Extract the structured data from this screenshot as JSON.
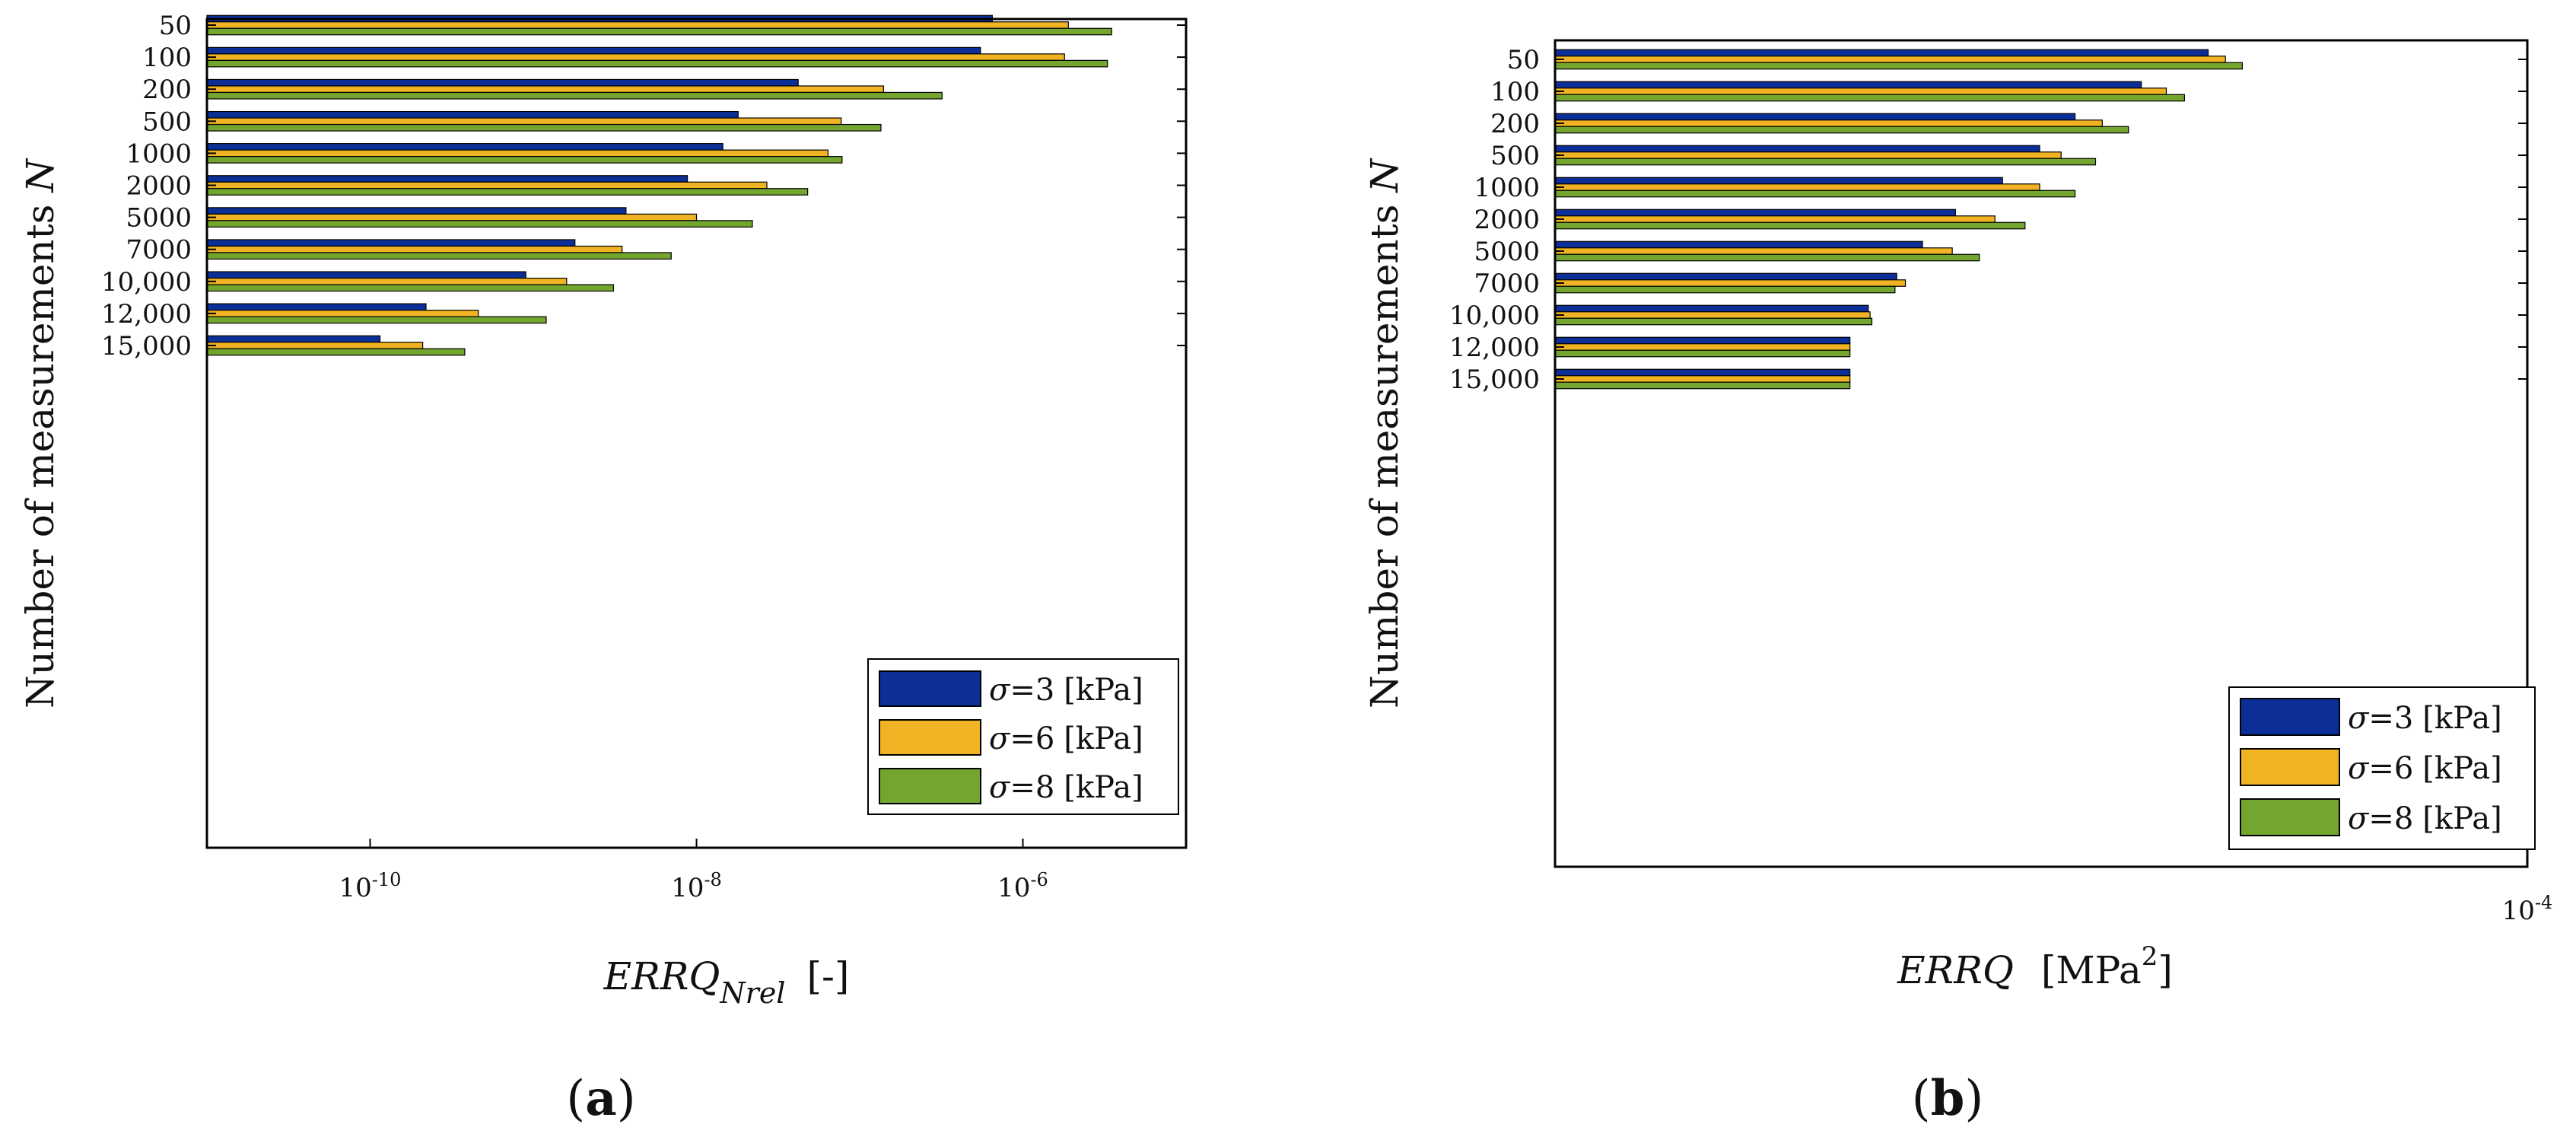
{
  "chart_data": [
    {
      "type": "bar",
      "orientation": "horizontal",
      "x_scale": "log",
      "categories": [
        "50",
        "100",
        "200",
        "500",
        "1000",
        "2000",
        "5000",
        "7000",
        "10,000",
        "12,000",
        "15,000"
      ],
      "series": [
        {
          "name": "σ=3 [kPa]",
          "sigma": "σ",
          "label_value": "=3",
          "unit": "[kPa]",
          "color": "#0b2f96",
          "values": [
            6.5e-07,
            5.5e-07,
            4.2e-08,
            1.8e-08,
            1.45e-08,
            8.8e-09,
            3.7e-09,
            1.8e-09,
            9e-10,
            2.2e-10,
            1.15e-10
          ]
        },
        {
          "name": "σ=6 [kPa]",
          "sigma": "σ",
          "label_value": "=6",
          "unit": "[kPa]",
          "color": "#f0b323",
          "values": [
            1.9e-06,
            1.8e-06,
            1.4e-07,
            7.7e-08,
            6.4e-08,
            2.7e-08,
            1e-08,
            3.5e-09,
            1.6e-09,
            4.6e-10,
            2.1e-10
          ]
        },
        {
          "name": "σ=8 [kPa]",
          "sigma": "σ",
          "label_value": "=8",
          "unit": "[kPa]",
          "color": "#74a62f",
          "values": [
            3.5e-06,
            3.3e-06,
            3.2e-07,
            1.35e-07,
            7.8e-08,
            4.8e-08,
            2.2e-08,
            7e-09,
            3.1e-09,
            1.2e-09,
            3.8e-10
          ]
        }
      ],
      "xlim": [
        1e-11,
        1e-05
      ],
      "xticks": [
        {
          "base": "10",
          "exp": "-10",
          "value": 1e-10
        },
        {
          "base": "10",
          "exp": "-8",
          "value": 1e-08
        },
        {
          "base": "10",
          "exp": "-6",
          "value": 1e-06
        }
      ],
      "xlabel": {
        "main": "ERRQ",
        "sub": "Nrel",
        "unit": "[-]"
      },
      "ylabel": {
        "text": "Number of measurements ",
        "var": "N"
      },
      "legend": "bottom-right",
      "panel_label": {
        "open": "(",
        "letter": "a",
        "close": ")"
      }
    },
    {
      "type": "bar",
      "orientation": "horizontal",
      "x_scale": "log",
      "categories": [
        "50",
        "100",
        "200",
        "500",
        "1000",
        "2000",
        "5000",
        "7000",
        "10,000",
        "12,000",
        "15,000"
      ],
      "series": [
        {
          "name": "σ=3 [kPa]",
          "sigma": "σ",
          "label_value": "=3",
          "unit": "[kPa]",
          "color": "#0b2f96",
          "values": [
            6.6e-05,
            6.05e-05,
            5.55e-05,
            5.3e-05,
            5.05e-05,
            4.75e-05,
            4.55e-05,
            4.4e-05,
            4.24e-05,
            4.14e-05,
            4.14e-05
          ]
        },
        {
          "name": "σ=6 [kPa]",
          "sigma": "σ",
          "label_value": "=6",
          "unit": "[kPa]",
          "color": "#f0b323",
          "values": [
            6.75e-05,
            6.25e-05,
            5.75e-05,
            5.45e-05,
            5.3e-05,
            5e-05,
            4.73e-05,
            4.45e-05,
            4.25e-05,
            4.14e-05,
            4.14e-05
          ]
        },
        {
          "name": "σ=8 [kPa]",
          "sigma": "σ",
          "label_value": "=8",
          "unit": "[kPa]",
          "color": "#74a62f",
          "values": [
            6.9e-05,
            6.4e-05,
            5.95e-05,
            5.7e-05,
            5.55e-05,
            5.2e-05,
            4.9e-05,
            4.39e-05,
            4.26e-05,
            4.14e-05,
            4.14e-05
          ]
        }
      ],
      "xlim": [
        2.82e-05,
        0.0001
      ],
      "xticks": [
        {
          "base": "10",
          "exp": "-4",
          "value": 0.0001
        }
      ],
      "xlabel": {
        "main": "ERRQ",
        "unit_prefix": "[MPa",
        "unit_exp": "2",
        "unit_suffix": "]"
      },
      "ylabel": {
        "text": "Number of measurements ",
        "var": "N"
      },
      "legend": "bottom-right",
      "panel_label": {
        "open": "(",
        "letter": "b",
        "close": ")"
      }
    }
  ]
}
